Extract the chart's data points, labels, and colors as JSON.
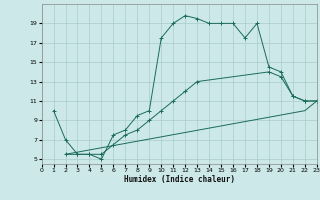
{
  "xlabel": "Humidex (Indice chaleur)",
  "bg_color": "#cce8e8",
  "grid_color": "#aacccc",
  "line_color": "#1a6b5a",
  "xlim": [
    0,
    23
  ],
  "ylim": [
    4.5,
    21.0
  ],
  "xticks": [
    0,
    1,
    2,
    3,
    4,
    5,
    6,
    7,
    8,
    9,
    10,
    11,
    12,
    13,
    14,
    15,
    16,
    17,
    18,
    19,
    20,
    21,
    22,
    23
  ],
  "yticks": [
    5,
    7,
    9,
    11,
    13,
    15,
    17,
    19
  ],
  "series1_x": [
    1,
    2,
    3,
    4,
    5,
    6,
    7,
    8,
    9,
    10,
    11,
    12,
    13,
    14,
    15,
    16,
    17,
    18,
    19,
    20,
    21,
    22,
    23
  ],
  "series1_y": [
    10,
    7,
    5.5,
    5.5,
    5,
    7.5,
    8,
    9.5,
    10,
    17.5,
    19,
    19.8,
    19.5,
    19,
    19,
    19,
    17.5,
    19,
    14.5,
    14,
    11.5,
    11,
    11
  ],
  "series2_x": [
    2,
    3,
    4,
    5,
    6,
    7,
    8,
    9,
    10,
    11,
    12,
    13,
    19,
    20,
    21,
    22,
    23
  ],
  "series2_y": [
    5.5,
    5.5,
    5.5,
    5.5,
    6.5,
    7.5,
    8,
    9,
    10,
    11,
    12,
    13,
    14,
    13.5,
    11.5,
    11,
    11
  ],
  "series3_x": [
    2,
    22,
    23
  ],
  "series3_y": [
    5.5,
    10,
    11
  ]
}
